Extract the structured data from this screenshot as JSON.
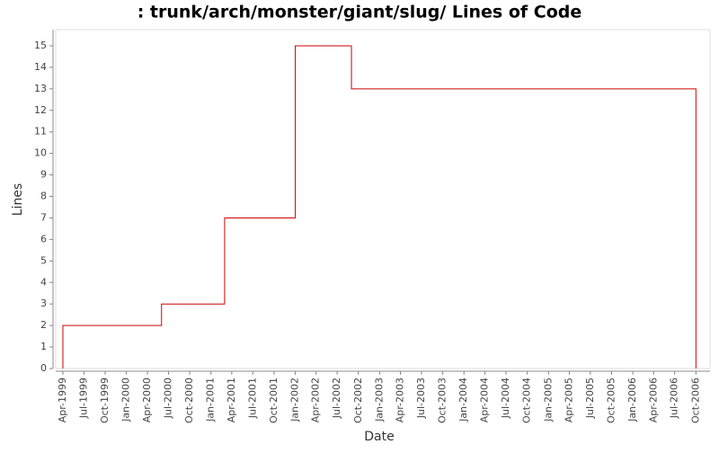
{
  "chart_data": {
    "type": "step",
    "title": ": trunk/arch/monster/giant/slug/ Lines of Code",
    "x_label": "Date",
    "y_label": "Lines",
    "series": [
      {
        "name": "Lines",
        "color": "#cc0000",
        "x": [
          "1999-04",
          "1999-04",
          "2000-06",
          "2001-03",
          "2002-01",
          "2002-09",
          "2006-10"
        ],
        "values": [
          0,
          2,
          3,
          7,
          15,
          13,
          0
        ]
      }
    ],
    "xlim": [
      "1999-03",
      "2006-12"
    ],
    "xticks": [
      {
        "value": "1999-04",
        "label": "Apr-1999"
      },
      {
        "value": "1999-07",
        "label": "Jul-1999"
      },
      {
        "value": "1999-10",
        "label": "Oct-1999"
      },
      {
        "value": "2000-01",
        "label": "Jan-2000"
      },
      {
        "value": "2000-04",
        "label": "Apr-2000"
      },
      {
        "value": "2000-07",
        "label": "Jul-2000"
      },
      {
        "value": "2000-10",
        "label": "Oct-2000"
      },
      {
        "value": "2001-01",
        "label": "Jan-2001"
      },
      {
        "value": "2001-04",
        "label": "Apr-2001"
      },
      {
        "value": "2001-07",
        "label": "Jul-2001"
      },
      {
        "value": "2001-10",
        "label": "Oct-2001"
      },
      {
        "value": "2002-01",
        "label": "Jan-2002"
      },
      {
        "value": "2002-04",
        "label": "Apr-2002"
      },
      {
        "value": "2002-07",
        "label": "Jul-2002"
      },
      {
        "value": "2002-10",
        "label": "Oct-2002"
      },
      {
        "value": "2003-01",
        "label": "Jan-2003"
      },
      {
        "value": "2003-04",
        "label": "Apr-2003"
      },
      {
        "value": "2003-07",
        "label": "Jul-2003"
      },
      {
        "value": "2003-10",
        "label": "Oct-2003"
      },
      {
        "value": "2004-01",
        "label": "Jan-2004"
      },
      {
        "value": "2004-04",
        "label": "Apr-2004"
      },
      {
        "value": "2004-07",
        "label": "Jul-2004"
      },
      {
        "value": "2004-10",
        "label": "Oct-2004"
      },
      {
        "value": "2005-01",
        "label": "Jan-2005"
      },
      {
        "value": "2005-04",
        "label": "Apr-2005"
      },
      {
        "value": "2005-07",
        "label": "Jul-2005"
      },
      {
        "value": "2005-10",
        "label": "Oct-2005"
      },
      {
        "value": "2006-01",
        "label": "Jan-2006"
      },
      {
        "value": "2006-04",
        "label": "Apr-2006"
      },
      {
        "value": "2006-07",
        "label": "Jul-2006"
      },
      {
        "value": "2006-10",
        "label": "Oct-2006"
      }
    ],
    "ylim": [
      0,
      15.75
    ],
    "yticks": [
      0,
      1,
      2,
      3,
      4,
      5,
      6,
      7,
      8,
      9,
      10,
      11,
      12,
      13,
      14,
      15
    ]
  }
}
